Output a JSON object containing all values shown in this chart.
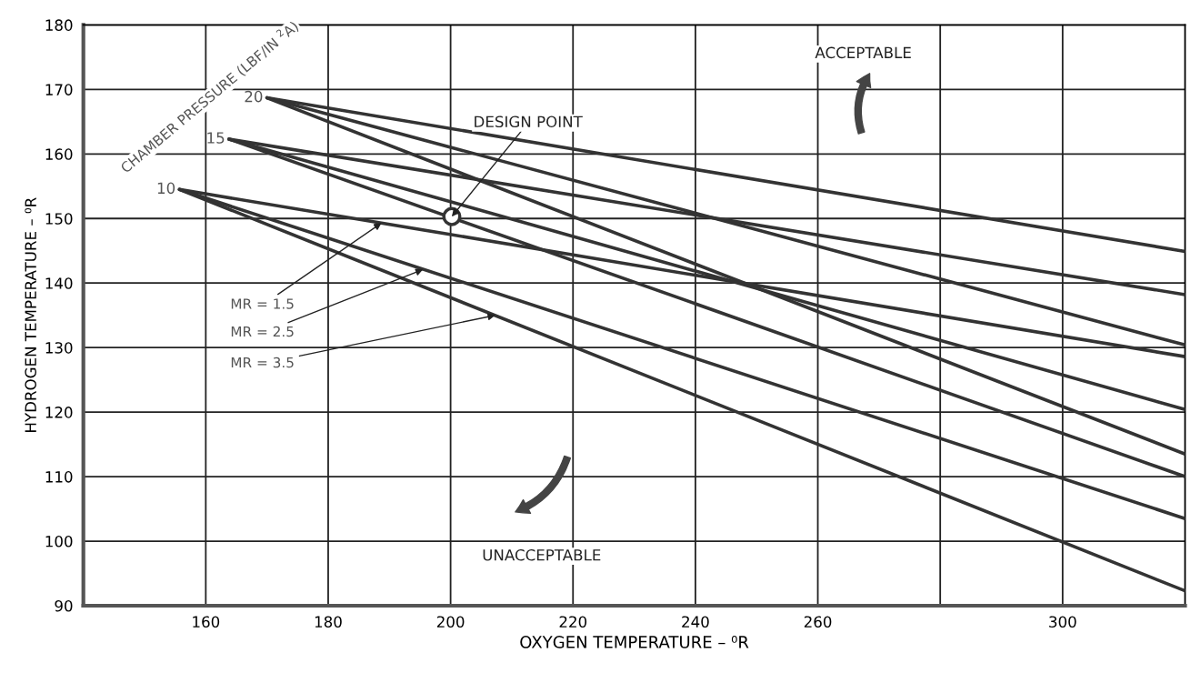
{
  "chart_data": {
    "type": "line",
    "xlabel": "OXYGEN TEMPERATURE – ⁰R",
    "ylabel": "HYDROGEN TEMPERATURE – ⁰R",
    "xlim": [
      140,
      320
    ],
    "ylim": [
      90,
      180
    ],
    "xticks": [
      160,
      180,
      200,
      220,
      240,
      {
        "value": 260,
        "label": "260"
      },
      {
        "value": 280,
        "label": null
      },
      300
    ],
    "yticks": [
      90,
      100,
      110,
      120,
      130,
      140,
      150,
      160,
      170,
      180
    ],
    "grid": true,
    "line_style": "solid",
    "series": [
      {
        "color": "#333333",
        "x": [
          170.0,
          320
        ],
        "values": [
          168.7,
          144.9
        ]
      },
      {
        "color": "#333333",
        "x": [
          170.0,
          320
        ],
        "values": [
          168.7,
          130.4
        ]
      },
      {
        "color": "#333333",
        "x": [
          170.0,
          320
        ],
        "values": [
          168.7,
          113.5
        ]
      },
      {
        "color": "#333333",
        "x": [
          163.8,
          320
        ],
        "values": [
          162.3,
          138.2
        ]
      },
      {
        "color": "#333333",
        "x": [
          163.8,
          320
        ],
        "values": [
          162.3,
          120.4
        ]
      },
      {
        "color": "#333333",
        "x": [
          163.8,
          320
        ],
        "values": [
          162.3,
          110.0
        ]
      },
      {
        "color": "#333333",
        "x": [
          155.7,
          320
        ],
        "values": [
          154.5,
          128.6
        ]
      },
      {
        "color": "#333333",
        "x": [
          155.7,
          320
        ],
        "values": [
          154.5,
          103.5
        ]
      },
      {
        "color": "#333333",
        "x": [
          155.7,
          320
        ],
        "values": [
          154.5,
          92.3
        ]
      },
      {
        "type": "scatter",
        "marker": "circle",
        "color": "#333333",
        "x": [
          200.2
        ],
        "values": [
          150.3
        ]
      }
    ],
    "annotations": [
      "CHAMBER PRESSURE (LBF/IN $^{2}$A)",
      {
        "text": "20",
        "x": 170.0,
        "y": 168.7
      },
      {
        "text": "15",
        "x": 163.8,
        "y": 162.3
      },
      {
        "text": "10",
        "x": 155.7,
        "y": 154.5
      },
      {
        "text": "DESIGN POINT",
        "x": 200.2,
        "y": 150.3
      },
      "ACCEPTABLE",
      "UNACCEPTABLE",
      {
        "text": "MR = 1.5",
        "x": 188.7,
        "y": 149.3
      },
      {
        "text": "MR = 2.5",
        "x": 195.5,
        "y": 142.1
      },
      {
        "text": "MR = 3.5",
        "x": 207.3,
        "y": 135.0
      }
    ]
  }
}
